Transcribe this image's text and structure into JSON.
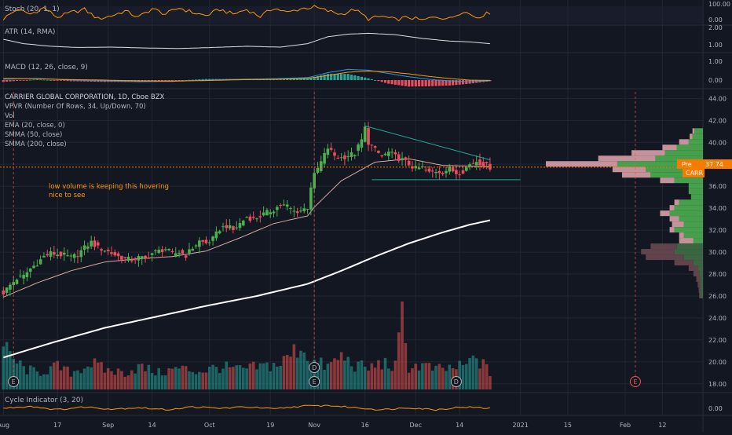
{
  "colors": {
    "background": "#131722",
    "grid": "#232732",
    "pane_border": "#2a2e39",
    "text": "#b2b5be",
    "up": "#26a69a",
    "down": "#ef5350",
    "candle_up": "#4caf50",
    "candle_down": "#e84e5c",
    "stoch_k": "#ff9800",
    "stoch_d": "#9c27b0",
    "atr": "#e0e0e0",
    "macd": "#2196f3",
    "signal": "#ff9800",
    "ema": "#d9a9a0",
    "smma200": "#ffffff",
    "trendline": "#26a69a",
    "annotation": "#ff9800",
    "price_tag": "#f57c00",
    "vp_up": "#4caf50",
    "vp_down": "#e5a8b0",
    "cycle": "#ff9800"
  },
  "panes": {
    "stoch": {
      "label": "Stoch (20, 1, 1)",
      "ticks": [
        "100.00",
        "0.00"
      ]
    },
    "atr": {
      "label": "ATR (14, RMA)",
      "ticks": [
        "2.00",
        "1.00"
      ]
    },
    "macd": {
      "label": "MACD (12, 26, close, 9)",
      "ticks": [
        "1.00",
        "0.00"
      ]
    },
    "main": {
      "legend": [
        "CARRIER GLOBAL CORPORATION, 1D, Cboe BZX",
        "VPVR (Number Of Rows, 34, Up/Down, 70)",
        "Vol",
        "EMA (20, close, 0)",
        "SMMA (50, close)",
        "SMMA (200, close)"
      ],
      "annotation": [
        "low volume is keeping this hovering",
        "nice to see"
      ],
      "price_tag_label": "Pre",
      "price_tag_value": "37.74",
      "symbol_tag": "CARR",
      "event_markers": [
        "E",
        "D"
      ]
    },
    "cycle": {
      "label": "Cycle Indicator (3, 20)",
      "ticks": [
        "0.00"
      ]
    }
  },
  "chart_data": {
    "type": "candlestick",
    "title": "CARRIER GLOBAL CORPORATION, 1D, Cboe BZX",
    "symbol": "CARR",
    "last_price": 37.74,
    "y_ticks": [
      "44.00",
      "42.00",
      "40.00",
      "38.00",
      "36.00",
      "34.00",
      "32.00",
      "30.00",
      "28.00",
      "26.00",
      "24.00",
      "22.00",
      "20.00",
      "18.00"
    ],
    "ylim": [
      17.2,
      44.6
    ],
    "x_ticks": [
      "Aug",
      "17",
      "Sep",
      "14",
      "Oct",
      "19",
      "Nov",
      "16",
      "Dec",
      "14",
      "2021",
      "15",
      "Feb",
      "12"
    ],
    "x_tick_days": [
      0,
      16,
      31,
      44,
      61,
      79,
      92,
      107,
      122,
      135,
      153,
      167,
      184,
      195
    ],
    "xlim_days": [
      -1,
      207
    ],
    "last_bar_day": 144,
    "price_anchors": [
      [
        0,
        26.3
      ],
      [
        2,
        27.0
      ],
      [
        4,
        27.6
      ],
      [
        6,
        27.8
      ],
      [
        8,
        28.5
      ],
      [
        10,
        29.0
      ],
      [
        12,
        29.6
      ],
      [
        14,
        29.9
      ],
      [
        16,
        29.8
      ],
      [
        18,
        29.7
      ],
      [
        20,
        29.5
      ],
      [
        22,
        29.8
      ],
      [
        24,
        30.4
      ],
      [
        26,
        30.9
      ],
      [
        28,
        30.4
      ],
      [
        30,
        30.2
      ],
      [
        32,
        29.9
      ],
      [
        34,
        29.6
      ],
      [
        36,
        29.4
      ],
      [
        38,
        29.3
      ],
      [
        40,
        29.5
      ],
      [
        42,
        29.4
      ],
      [
        44,
        29.9
      ],
      [
        46,
        30.1
      ],
      [
        48,
        30.3
      ],
      [
        50,
        29.8
      ],
      [
        52,
        30.0
      ],
      [
        54,
        29.7
      ],
      [
        56,
        30.4
      ],
      [
        58,
        31.0
      ],
      [
        60,
        30.8
      ],
      [
        62,
        31.2
      ],
      [
        64,
        32.1
      ],
      [
        66,
        32.4
      ],
      [
        68,
        32.0
      ],
      [
        70,
        32.6
      ],
      [
        72,
        33.2
      ],
      [
        74,
        33.0
      ],
      [
        76,
        33.3
      ],
      [
        78,
        33.6
      ],
      [
        80,
        33.9
      ],
      [
        82,
        34.3
      ],
      [
        84,
        34.2
      ],
      [
        86,
        33.7
      ],
      [
        88,
        33.8
      ],
      [
        90,
        34.1
      ],
      [
        91,
        36.0
      ],
      [
        92,
        37.0
      ],
      [
        94,
        38.2
      ],
      [
        96,
        39.5
      ],
      [
        98,
        38.8
      ],
      [
        100,
        38.6
      ],
      [
        102,
        38.8
      ],
      [
        104,
        39.0
      ],
      [
        106,
        40.2
      ],
      [
        107,
        41.3
      ],
      [
        108,
        40.0
      ],
      [
        110,
        39.3
      ],
      [
        112,
        38.7
      ],
      [
        114,
        39.1
      ],
      [
        116,
        38.7
      ],
      [
        118,
        38.4
      ],
      [
        120,
        38.0
      ],
      [
        122,
        37.6
      ],
      [
        124,
        37.7
      ],
      [
        126,
        37.2
      ],
      [
        128,
        37.4
      ],
      [
        130,
        37.3
      ],
      [
        132,
        37.6
      ],
      [
        134,
        37.2
      ],
      [
        136,
        37.4
      ],
      [
        138,
        38.0
      ],
      [
        140,
        38.3
      ],
      [
        142,
        38.0
      ],
      [
        144,
        37.74
      ]
    ],
    "ema20_anchors": [
      [
        0,
        25.9
      ],
      [
        10,
        27.2
      ],
      [
        20,
        28.3
      ],
      [
        30,
        29.1
      ],
      [
        40,
        29.4
      ],
      [
        50,
        29.6
      ],
      [
        60,
        30.1
      ],
      [
        70,
        31.3
      ],
      [
        80,
        32.6
      ],
      [
        90,
        33.3
      ],
      [
        92,
        34.1
      ],
      [
        100,
        36.5
      ],
      [
        110,
        38.2
      ],
      [
        120,
        38.5
      ],
      [
        130,
        37.9
      ],
      [
        144,
        37.8
      ]
    ],
    "smma200_anchors": [
      [
        0,
        20.4
      ],
      [
        15,
        21.8
      ],
      [
        30,
        23.1
      ],
      [
        45,
        24.1
      ],
      [
        60,
        25.1
      ],
      [
        75,
        26.0
      ],
      [
        90,
        27.1
      ],
      [
        100,
        28.3
      ],
      [
        110,
        29.6
      ],
      [
        120,
        30.8
      ],
      [
        130,
        31.8
      ],
      [
        138,
        32.5
      ],
      [
        144,
        32.9
      ]
    ],
    "trendline_upper": [
      [
        107,
        41.5
      ],
      [
        144,
        38.4
      ]
    ],
    "trendline_lower": [
      [
        109,
        36.6
      ],
      [
        153,
        36.6
      ]
    ],
    "volume_ylim_max": 1.0,
    "volume_anchors": [
      [
        0,
        0.55
      ],
      [
        3,
        0.4
      ],
      [
        6,
        0.28
      ],
      [
        10,
        0.22
      ],
      [
        16,
        0.3
      ],
      [
        20,
        0.22
      ],
      [
        26,
        0.35
      ],
      [
        30,
        0.26
      ],
      [
        36,
        0.22
      ],
      [
        40,
        0.3
      ],
      [
        46,
        0.22
      ],
      [
        52,
        0.28
      ],
      [
        58,
        0.24
      ],
      [
        64,
        0.3
      ],
      [
        70,
        0.26
      ],
      [
        76,
        0.3
      ],
      [
        82,
        0.34
      ],
      [
        88,
        0.58
      ],
      [
        90,
        0.45
      ],
      [
        92,
        0.36
      ],
      [
        96,
        0.3
      ],
      [
        100,
        0.44
      ],
      [
        104,
        0.32
      ],
      [
        108,
        0.28
      ],
      [
        112,
        0.35
      ],
      [
        116,
        0.3
      ],
      [
        118,
        0.95
      ],
      [
        120,
        0.3
      ],
      [
        124,
        0.32
      ],
      [
        128,
        0.26
      ],
      [
        132,
        0.28
      ],
      [
        136,
        0.3
      ],
      [
        140,
        0.42
      ],
      [
        144,
        0.22
      ]
    ],
    "volume_profile": [
      {
        "price": 41.0,
        "up": 18,
        "down": 4
      },
      {
        "price": 40.5,
        "up": 22,
        "down": 6
      },
      {
        "price": 40.0,
        "up": 30,
        "down": 20
      },
      {
        "price": 39.5,
        "up": 55,
        "down": 30
      },
      {
        "price": 39.0,
        "up": 80,
        "down": 70
      },
      {
        "price": 38.5,
        "up": 100,
        "down": 120
      },
      {
        "price": 38.0,
        "up": 180,
        "down": 150
      },
      {
        "price": 37.5,
        "up": 120,
        "down": 70
      },
      {
        "price": 37.0,
        "up": 110,
        "down": 60
      },
      {
        "price": 36.5,
        "up": 60,
        "down": 30
      },
      {
        "price": 36.0,
        "up": 30,
        "down": 0
      },
      {
        "price": 35.5,
        "up": 30,
        "down": 0
      },
      {
        "price": 35.0,
        "up": 25,
        "down": 0
      },
      {
        "price": 34.5,
        "up": 50,
        "down": 10
      },
      {
        "price": 34.0,
        "up": 60,
        "down": 10
      },
      {
        "price": 33.5,
        "up": 70,
        "down": 20
      },
      {
        "price": 33.0,
        "up": 50,
        "down": 20
      },
      {
        "price": 32.5,
        "up": 40,
        "down": 25
      },
      {
        "price": 32.0,
        "up": 60,
        "down": 10
      },
      {
        "price": 31.5,
        "up": 40,
        "down": 10
      },
      {
        "price": 31.0,
        "up": 20,
        "down": 30
      },
      {
        "price": 30.5,
        "up": 55,
        "down": 55
      },
      {
        "price": 30.0,
        "up": 60,
        "down": 70
      },
      {
        "price": 29.5,
        "up": 40,
        "down": 80
      },
      {
        "price": 29.0,
        "up": 20,
        "down": 40
      },
      {
        "price": 28.5,
        "up": 10,
        "down": 20
      },
      {
        "price": 28.0,
        "up": 8,
        "down": 12
      },
      {
        "price": 27.5,
        "up": 6,
        "down": 8
      },
      {
        "price": 27.0,
        "up": 5,
        "down": 6
      },
      {
        "price": 26.5,
        "up": 5,
        "down": 4
      },
      {
        "price": 26.0,
        "up": 5,
        "down": 3
      }
    ],
    "stoch_anchors": [
      [
        0,
        0.2
      ],
      [
        4,
        0.8
      ],
      [
        8,
        0.5
      ],
      [
        12,
        0.9
      ],
      [
        16,
        0.3
      ],
      [
        20,
        0.6
      ],
      [
        24,
        0.8
      ],
      [
        28,
        0.2
      ],
      [
        32,
        0.4
      ],
      [
        36,
        0.7
      ],
      [
        40,
        0.3
      ],
      [
        44,
        0.85
      ],
      [
        48,
        0.5
      ],
      [
        52,
        0.9
      ],
      [
        56,
        0.6
      ],
      [
        60,
        0.4
      ],
      [
        64,
        0.8
      ],
      [
        68,
        0.5
      ],
      [
        72,
        0.8
      ],
      [
        76,
        0.35
      ],
      [
        80,
        0.9
      ],
      [
        84,
        0.6
      ],
      [
        88,
        0.85
      ],
      [
        92,
        0.95
      ],
      [
        96,
        0.7
      ],
      [
        100,
        0.5
      ],
      [
        104,
        0.8
      ],
      [
        108,
        0.2
      ],
      [
        112,
        0.35
      ],
      [
        116,
        0.15
      ],
      [
        120,
        0.3
      ],
      [
        124,
        0.1
      ],
      [
        128,
        0.35
      ],
      [
        132,
        0.2
      ],
      [
        136,
        0.7
      ],
      [
        140,
        0.3
      ],
      [
        144,
        0.6
      ]
    ],
    "atr_anchors": [
      [
        0,
        1.45
      ],
      [
        6,
        1.2
      ],
      [
        14,
        1.05
      ],
      [
        22,
        0.98
      ],
      [
        32,
        1.0
      ],
      [
        42,
        0.95
      ],
      [
        52,
        0.92
      ],
      [
        62,
        0.98
      ],
      [
        72,
        1.05
      ],
      [
        82,
        1.0
      ],
      [
        90,
        1.2
      ],
      [
        96,
        1.6
      ],
      [
        102,
        1.75
      ],
      [
        108,
        1.8
      ],
      [
        116,
        1.72
      ],
      [
        124,
        1.5
      ],
      [
        132,
        1.35
      ],
      [
        138,
        1.3
      ],
      [
        144,
        1.2
      ]
    ],
    "macd_anchors": [
      [
        0,
        0.05
      ],
      [
        10,
        0.1
      ],
      [
        20,
        0.0
      ],
      [
        30,
        -0.05
      ],
      [
        40,
        -0.1
      ],
      [
        50,
        -0.08
      ],
      [
        60,
        0.0
      ],
      [
        70,
        0.05
      ],
      [
        80,
        0.08
      ],
      [
        90,
        0.15
      ],
      [
        96,
        0.45
      ],
      [
        102,
        0.65
      ],
      [
        108,
        0.6
      ],
      [
        114,
        0.4
      ],
      [
        120,
        0.2
      ],
      [
        126,
        0.05
      ],
      [
        132,
        -0.05
      ],
      [
        138,
        -0.1
      ],
      [
        144,
        -0.05
      ]
    ],
    "macd_signal_anchors": [
      [
        0,
        0.1
      ],
      [
        10,
        0.08
      ],
      [
        20,
        0.03
      ],
      [
        30,
        0.0
      ],
      [
        40,
        -0.05
      ],
      [
        50,
        -0.06
      ],
      [
        60,
        -0.03
      ],
      [
        70,
        0.02
      ],
      [
        80,
        0.05
      ],
      [
        90,
        0.1
      ],
      [
        96,
        0.28
      ],
      [
        102,
        0.48
      ],
      [
        108,
        0.55
      ],
      [
        114,
        0.5
      ],
      [
        120,
        0.38
      ],
      [
        126,
        0.22
      ],
      [
        132,
        0.1
      ],
      [
        138,
        0.0
      ],
      [
        144,
        -0.02
      ]
    ],
    "cycle_anchors": [
      [
        0,
        0.0
      ],
      [
        8,
        0.15
      ],
      [
        16,
        -0.1
      ],
      [
        24,
        0.1
      ],
      [
        32,
        -0.05
      ],
      [
        40,
        0.05
      ],
      [
        48,
        -0.1
      ],
      [
        56,
        0.1
      ],
      [
        64,
        0.0
      ],
      [
        72,
        0.1
      ],
      [
        80,
        -0.05
      ],
      [
        88,
        0.15
      ],
      [
        96,
        0.2
      ],
      [
        104,
        0.05
      ],
      [
        112,
        -0.1
      ],
      [
        120,
        0.05
      ],
      [
        128,
        -0.1
      ],
      [
        136,
        0.1
      ],
      [
        144,
        0.0
      ]
    ]
  }
}
